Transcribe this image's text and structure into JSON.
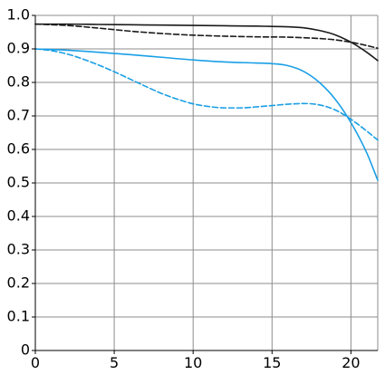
{
  "chart_data": {
    "type": "line",
    "title": "",
    "xlabel": "",
    "ylabel": "",
    "xlim": [
      0,
      21.7
    ],
    "ylim": [
      0,
      1.0
    ],
    "x_ticks": [
      0,
      5,
      10,
      15,
      20
    ],
    "y_ticks": [
      0,
      0.1,
      0.2,
      0.3,
      0.4,
      0.5,
      0.6,
      0.7,
      0.8,
      0.9,
      1.0
    ],
    "x_tick_labels": [
      "0",
      "5",
      "10",
      "15",
      "20"
    ],
    "y_tick_labels": [
      "0",
      "0.1",
      "0.2",
      "0.3",
      "0.4",
      "0.5",
      "0.6",
      "0.7",
      "0.8",
      "0.9",
      "1.0"
    ],
    "grid": true,
    "series": [
      {
        "color": "#1a1a1a",
        "dash": "solid",
        "x": [
          0,
          2,
          4,
          6,
          8,
          10,
          12,
          14,
          15,
          16,
          17,
          18,
          19,
          20,
          21,
          21.7
        ],
        "values": [
          0.974,
          0.974,
          0.973,
          0.972,
          0.971,
          0.97,
          0.969,
          0.968,
          0.967,
          0.966,
          0.963,
          0.955,
          0.942,
          0.92,
          0.89,
          0.865
        ]
      },
      {
        "color": "#1a1a1a",
        "dash": "dashed",
        "x": [
          0,
          2,
          4,
          6,
          8,
          10,
          12,
          14,
          16,
          18,
          19,
          20,
          21,
          21.7
        ],
        "values": [
          0.974,
          0.97,
          0.962,
          0.953,
          0.946,
          0.941,
          0.938,
          0.936,
          0.935,
          0.931,
          0.927,
          0.92,
          0.91,
          0.902
        ]
      },
      {
        "color": "#1a9fe6",
        "dash": "solid",
        "x": [
          0,
          2,
          4,
          6,
          8,
          10,
          12,
          14,
          15,
          16,
          17,
          18,
          19,
          20,
          21,
          21.7
        ],
        "values": [
          0.9,
          0.896,
          0.89,
          0.883,
          0.875,
          0.867,
          0.861,
          0.858,
          0.856,
          0.85,
          0.833,
          0.8,
          0.75,
          0.68,
          0.59,
          0.508
        ]
      },
      {
        "color": "#1a9fe6",
        "dash": "dashed",
        "x": [
          0,
          1,
          2,
          3,
          4,
          5,
          6,
          7,
          8,
          9,
          10,
          11,
          12,
          13,
          14,
          15,
          16,
          17,
          18,
          19,
          20,
          21,
          21.7
        ],
        "values": [
          0.9,
          0.895,
          0.885,
          0.87,
          0.852,
          0.832,
          0.81,
          0.788,
          0.767,
          0.75,
          0.736,
          0.728,
          0.724,
          0.724,
          0.727,
          0.731,
          0.735,
          0.737,
          0.733,
          0.718,
          0.69,
          0.655,
          0.628
        ]
      }
    ]
  }
}
